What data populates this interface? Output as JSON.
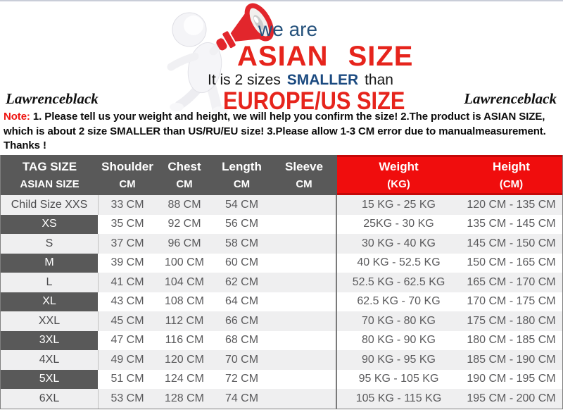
{
  "banner": {
    "we_are": "we are",
    "asian_size": "ASIAN SIZE",
    "smaller_prefix": "It is 2 sizes",
    "smaller_word": "SMALLER",
    "smaller_suffix": "than",
    "europe_size": "EUROPE/US SIZE",
    "brand_left": "Lawrenceblack",
    "brand_right": "Lawrenceblack",
    "mascot_icon": "white-figure-red-megaphone"
  },
  "note": {
    "label": "Note:",
    "line1": "1. Please tell us your weight and height, we will help you confirm the size!  2.The product is ASIAN SIZE,",
    "line2": "which is about 2 size SMALLER than US/RU/EU size!  3.Please allow 1-3 CM error due to manualmeasurement.",
    "line3": "Thanks !"
  },
  "table": {
    "header": {
      "size_line1": "TAG SIZE",
      "size_line2": "ASIAN SIZE",
      "shoulder": "Shoulder",
      "chest": "Chest",
      "length": "Length",
      "sleeve": "Sleeve",
      "unit_cm": "CM",
      "weight_line1": "Weight",
      "weight_line2": "(KG)",
      "height_line1": "Height",
      "height_line2": "(CM)"
    },
    "rows": [
      {
        "size": "Child Size XXS",
        "shoulder": "33 CM",
        "chest": "88 CM",
        "length": "54 CM",
        "sleeve": "",
        "weight": "15 KG - 25 KG",
        "height": "120 CM - 135 CM",
        "dark": false
      },
      {
        "size": "XS",
        "shoulder": "35 CM",
        "chest": "92 CM",
        "length": "56 CM",
        "sleeve": "",
        "weight": "25KG - 30 KG",
        "height": "135 CM - 145 CM",
        "dark": true
      },
      {
        "size": "S",
        "shoulder": "37 CM",
        "chest": "96 CM",
        "length": "58 CM",
        "sleeve": "",
        "weight": "30 KG - 40 KG",
        "height": "145 CM - 150 CM",
        "dark": false
      },
      {
        "size": "M",
        "shoulder": "39 CM",
        "chest": "100 CM",
        "length": "60 CM",
        "sleeve": "",
        "weight": "40 KG - 52.5 KG",
        "height": "150 CM - 165 CM",
        "dark": true
      },
      {
        "size": "L",
        "shoulder": "41 CM",
        "chest": "104 CM",
        "length": "62 CM",
        "sleeve": "",
        "weight": "52.5 KG - 62.5 KG",
        "height": "165 CM - 170 CM",
        "dark": false
      },
      {
        "size": "XL",
        "shoulder": "43 CM",
        "chest": "108 CM",
        "length": "64 CM",
        "sleeve": "",
        "weight": "62.5 KG - 70 KG",
        "height": "170 CM - 175 CM",
        "dark": true
      },
      {
        "size": "XXL",
        "shoulder": "45 CM",
        "chest": "112 CM",
        "length": "66 CM",
        "sleeve": "",
        "weight": "70 KG - 80 KG",
        "height": "175 CM - 180 CM",
        "dark": false
      },
      {
        "size": "3XL",
        "shoulder": "47 CM",
        "chest": "116 CM",
        "length": "68 CM",
        "sleeve": "",
        "weight": "80 KG - 90 KG",
        "height": "180 CM - 185 CM",
        "dark": true
      },
      {
        "size": "4XL",
        "shoulder": "49 CM",
        "chest": "120 CM",
        "length": "70 CM",
        "sleeve": "",
        "weight": "90 KG - 95 KG",
        "height": "185 CM - 190 CM",
        "dark": false
      },
      {
        "size": "5XL",
        "shoulder": "51 CM",
        "chest": "124 CM",
        "length": "72 CM",
        "sleeve": "",
        "weight": "95 KG - 105 KG",
        "height": "190 CM - 195 CM",
        "dark": true
      },
      {
        "size": "6XL",
        "shoulder": "53 CM",
        "chest": "128 CM",
        "length": "74 CM",
        "sleeve": "",
        "weight": "105 KG - 115 KG",
        "height": "195 CM - 200 CM",
        "dark": false
      }
    ]
  },
  "colors": {
    "accent_red": "#f00d0d",
    "banner_red": "#e6241c",
    "banner_blue": "#26527c",
    "smaller_blue": "#1b4a80",
    "header_gray": "#595959",
    "row_light": "#efeff0",
    "note_red": "#ee1410"
  }
}
